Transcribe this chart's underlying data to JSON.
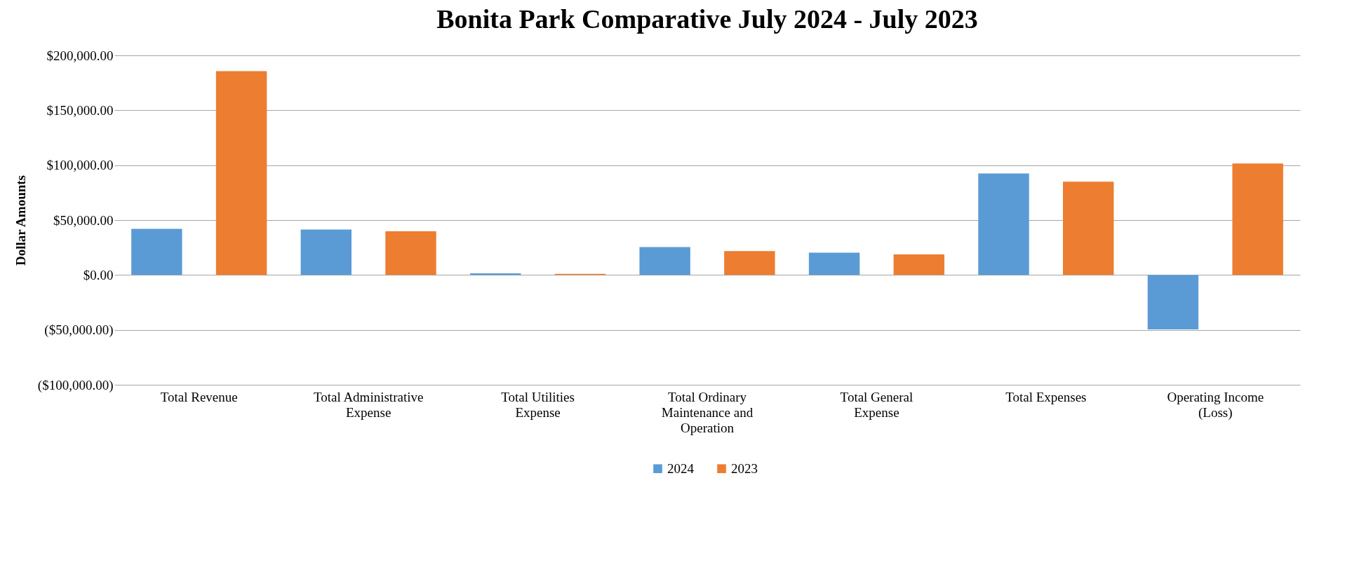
{
  "chart_data": {
    "type": "bar",
    "title": "Bonita Park Comparative July 2024 - July 2023",
    "ylabel": "Dollar Amounts",
    "categories": [
      "Total Revenue",
      "Total Administrative Expense",
      "Total Utilities Expense",
      "Total Ordinary Maintenance and Operation",
      "Total General Expense",
      "Total Expenses",
      "Operating Income (Loss)"
    ],
    "series": [
      {
        "name": "2024",
        "color": "#5b9bd5",
        "values": [
          42100,
          41400,
          1500,
          25500,
          20300,
          92500,
          -49600
        ]
      },
      {
        "name": "2023",
        "color": "#ed7d31",
        "values": [
          185700,
          39800,
          1000,
          21800,
          18800,
          85000,
          101500
        ]
      }
    ],
    "ylim": [
      -100000,
      200000
    ],
    "yticks": [
      {
        "value": -100000,
        "label": "($100,000.00)"
      },
      {
        "value": -50000,
        "label": "($50,000.00)"
      },
      {
        "value": 0,
        "label": "$0.00"
      },
      {
        "value": 50000,
        "label": "$50,000.00"
      },
      {
        "value": 100000,
        "label": "$100,000.00"
      },
      {
        "value": 150000,
        "label": "$150,000.00"
      },
      {
        "value": 200000,
        "label": "$200,000.00"
      }
    ],
    "grid": "y",
    "legend": "bottom"
  }
}
